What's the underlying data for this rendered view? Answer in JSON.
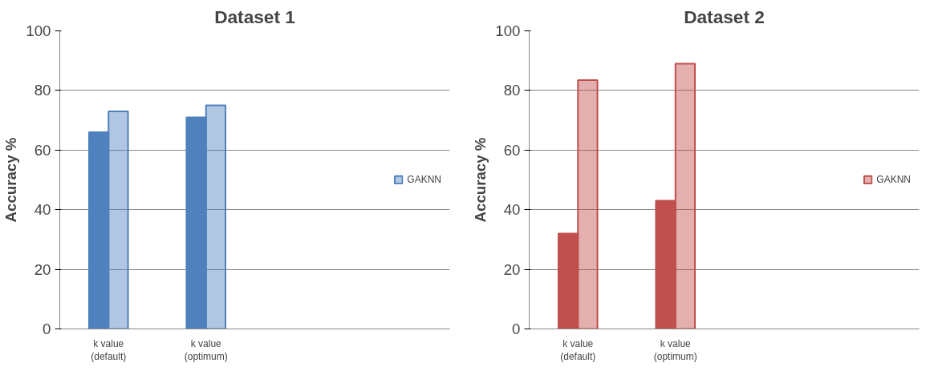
{
  "chart_data": [
    {
      "type": "bar",
      "title": "Dataset 1",
      "ylabel": "Accuracy %",
      "categories": [
        "k value\n(default)",
        "k value\n(optimum)",
        null,
        null
      ],
      "ylim": [
        0,
        100
      ],
      "yticks": [
        0,
        20,
        40,
        60,
        80,
        100
      ],
      "grid": "y",
      "legend": "right",
      "series": [
        {
          "color": "#4f81bd",
          "values": [
            66,
            71,
            null,
            null
          ]
        },
        {
          "name": "GAKNN",
          "color": "#4f81bd",
          "values": [
            73,
            75,
            null,
            null
          ]
        }
      ]
    },
    {
      "type": "bar",
      "title": "Dataset 2",
      "ylabel": "Accuracy %",
      "categories": [
        "k value\n(default)",
        "k value\n(optimum)",
        null,
        null
      ],
      "ylim": [
        0,
        100
      ],
      "yticks": [
        0,
        20,
        40,
        60,
        80,
        100
      ],
      "grid": "y",
      "legend": "right",
      "series": [
        {
          "color": "#c0504d",
          "values": [
            32,
            43,
            null,
            null
          ]
        },
        {
          "name": "GAKNN",
          "color": "#c0504d",
          "values": [
            83.5,
            89,
            null,
            null
          ]
        }
      ]
    }
  ]
}
